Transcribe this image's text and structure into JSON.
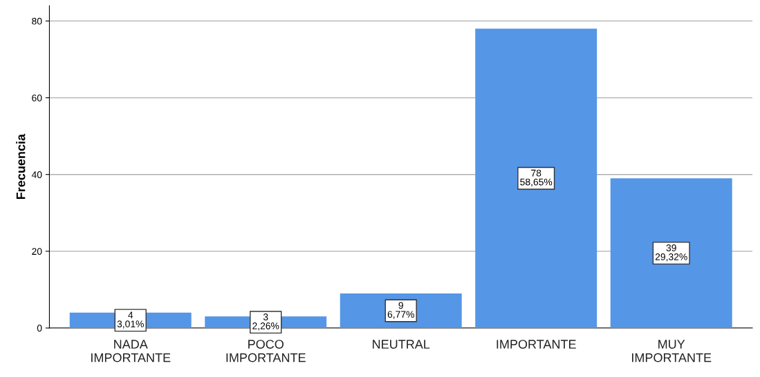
{
  "chart_data": {
    "type": "bar",
    "ylabel": "Frecuencia",
    "categories": [
      "NADA\nIMPORTANTE",
      "POCO\nIMPORTANTE",
      "NEUTRAL",
      "IMPORTANTE",
      "MUY\nIMPORTANTE"
    ],
    "values": [
      4,
      3,
      9,
      78,
      39
    ],
    "value_labels": [
      "4\n3,01%",
      "3\n2,26%",
      "9\n6,77%",
      "78\n58,65%",
      "39\n29,32%"
    ],
    "color": "#5596e6",
    "ylim": [
      0,
      84
    ],
    "yticks": [
      0,
      20,
      40,
      60,
      80
    ],
    "grid": "y"
  }
}
